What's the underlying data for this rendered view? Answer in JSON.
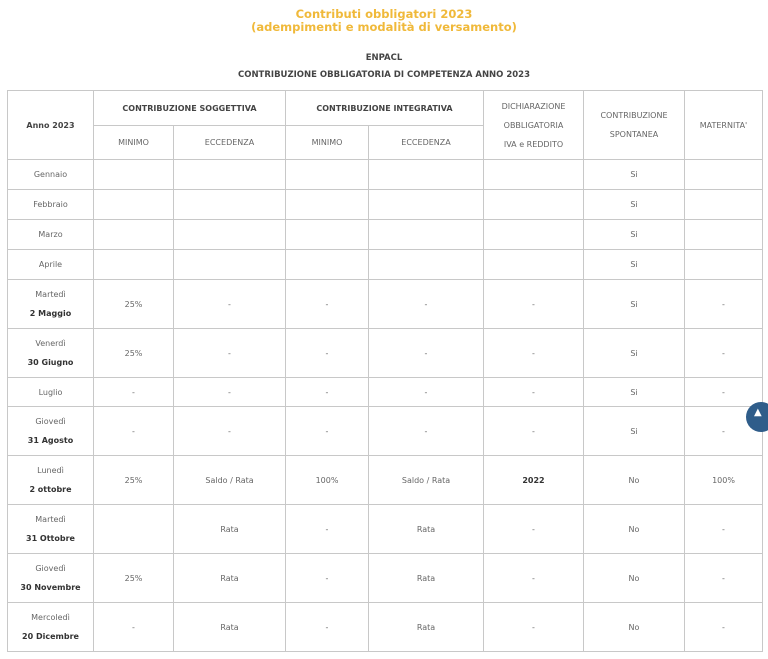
{
  "title": {
    "line1": "Contributi obbligatori 2023",
    "line2": "(adempimenti e modalità di versamento)"
  },
  "org": "ENPACL",
  "subtitle": "CONTRIBUZIONE OBBLIGATORIA DI COMPETENZA ANNO 2023",
  "headers": {
    "anno": "Anno 2023",
    "soggettiva": "CONTRIBUZIONE SOGGETTIVA",
    "integrativa": "CONTRIBUZIONE INTEGRATIVA",
    "dich1": "DICHIARAZIONE",
    "dich2": "OBBLIGATORIA",
    "dich3": "IVA e REDDITO",
    "spont1": "CONTRIBUZIONE",
    "spont2": "SPONTANEA",
    "maternita": "MATERNITA'",
    "minimo": "MINIMO",
    "eccedenza": "ECCEDENZA"
  },
  "rows": [
    {
      "day": "",
      "date": "Gennaio",
      "cells": [
        "",
        "",
        "",
        "",
        "",
        "Si",
        ""
      ]
    },
    {
      "day": "",
      "date": "Febbraio",
      "cells": [
        "",
        "",
        "",
        "",
        "",
        "Si",
        ""
      ]
    },
    {
      "day": "",
      "date": "Marzo",
      "cells": [
        "",
        "",
        "",
        "",
        "",
        "Si",
        ""
      ]
    },
    {
      "day": "",
      "date": "Aprile",
      "cells": [
        "",
        "",
        "",
        "",
        "",
        "Si",
        ""
      ]
    },
    {
      "day": "Martedì",
      "date": "2 Maggio",
      "cells": [
        "25%",
        "-",
        "-",
        "-",
        "-",
        "Si",
        "-"
      ]
    },
    {
      "day": "Venerdì",
      "date": "30 Giugno",
      "cells": [
        "25%",
        "-",
        "-",
        "-",
        "-",
        "Si",
        "-"
      ]
    },
    {
      "day": "",
      "date": "Luglio",
      "cells": [
        "-",
        "-",
        "-",
        "-",
        "-",
        "Si",
        "-"
      ]
    },
    {
      "day": "Giovedì",
      "date": "31 Agosto",
      "cells": [
        "-",
        "-",
        "-",
        "-",
        "-",
        "Si",
        "-"
      ]
    },
    {
      "day": "Lunedì",
      "date": "2 ottobre",
      "cells": [
        "25%",
        "Saldo / Rata",
        "100%",
        "Saldo / Rata",
        "2022",
        "No",
        "100%"
      ]
    },
    {
      "day": "Martedì",
      "date": "31 Ottobre",
      "cells": [
        "",
        "Rata",
        "-",
        "Rata",
        "-",
        "No",
        "-"
      ]
    },
    {
      "day": "Giovedì",
      "date": "30 Novembre",
      "cells": [
        "25%",
        "Rata",
        "-",
        "Rata",
        "-",
        "No",
        "-"
      ]
    },
    {
      "day": "Mercoledì",
      "date": "20 Dicembre",
      "cells": [
        "-",
        "Rata",
        "-",
        "Rata",
        "-",
        "No",
        "-"
      ]
    }
  ],
  "scroll_top_icon": "chevron-up-icon"
}
